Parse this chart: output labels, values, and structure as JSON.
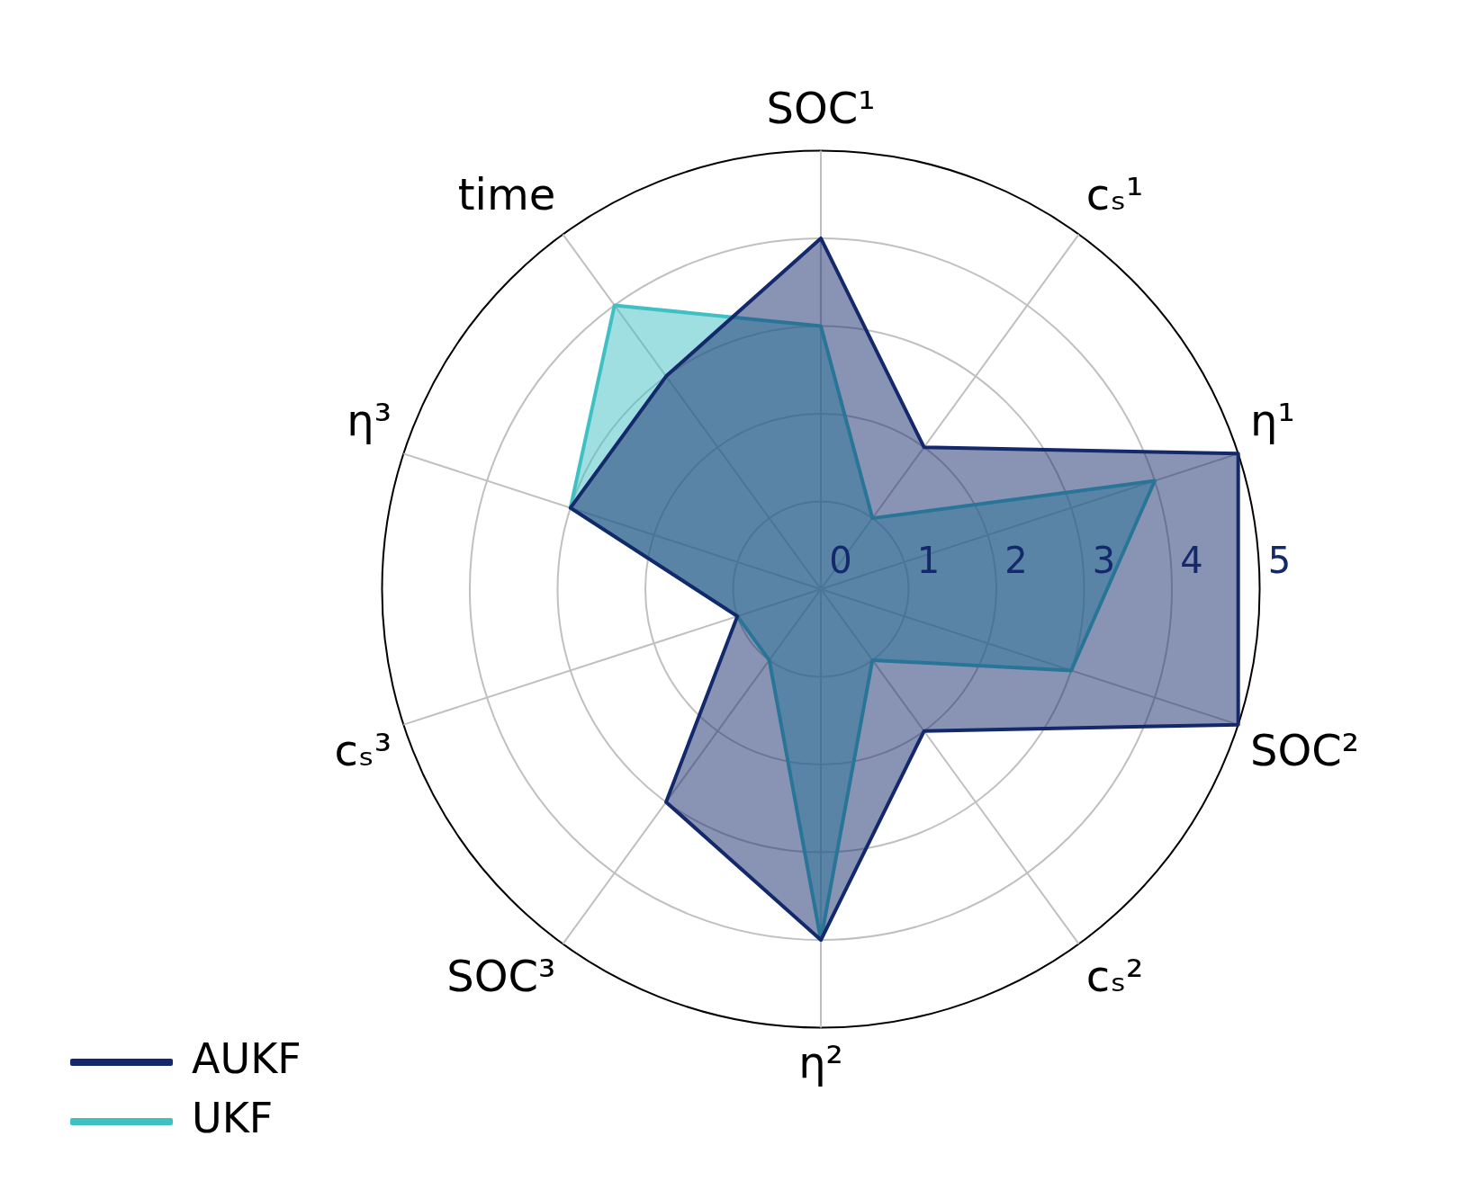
{
  "chart_data": {
    "type": "radar",
    "categories": [
      "SOC¹",
      "cₛ¹",
      "η¹",
      "SOC²",
      "cₛ²",
      "η²",
      "SOC³",
      "cₛ³",
      "η³",
      "time"
    ],
    "series": [
      {
        "name": "AUKF",
        "color": "#14296b",
        "values": [
          4,
          2,
          5,
          5,
          2,
          4,
          3,
          1,
          3,
          3
        ]
      },
      {
        "name": "UKF",
        "color": "#3fc0c3",
        "values": [
          3,
          1,
          4,
          3,
          1,
          4,
          1,
          1,
          3,
          4
        ]
      }
    ],
    "ylim": [
      0,
      5
    ],
    "yticks": [
      0,
      1,
      2,
      3,
      4,
      5
    ],
    "grid": true,
    "legend": "bottom left"
  }
}
